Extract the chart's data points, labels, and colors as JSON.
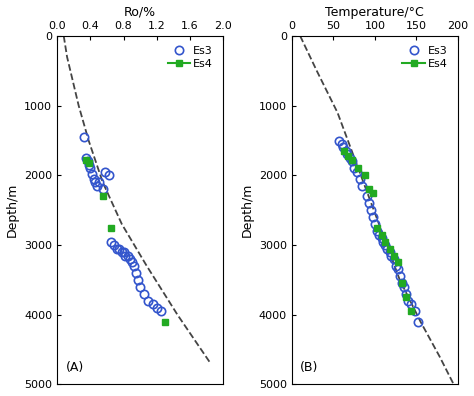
{
  "panel_A": {
    "title": "Ro/%",
    "xlim": [
      0,
      2.0
    ],
    "ylim": [
      5000,
      0
    ],
    "xticks": [
      0,
      0.4,
      0.8,
      1.2,
      1.6,
      2.0
    ],
    "yticks": [
      0,
      1000,
      2000,
      3000,
      4000,
      5000
    ],
    "label": "(A)",
    "Es3_x": [
      0.32,
      0.35,
      0.37,
      0.38,
      0.4,
      0.42,
      0.44,
      0.46,
      0.48,
      0.5,
      0.55,
      0.58,
      0.62,
      0.65,
      0.68,
      0.72,
      0.75,
      0.78,
      0.8,
      0.82,
      0.85,
      0.88,
      0.9,
      0.93,
      0.95,
      0.98,
      1.0,
      1.05,
      1.1,
      1.15,
      1.2,
      1.25
    ],
    "Es3_y": [
      1450,
      1750,
      1800,
      1850,
      1900,
      1980,
      2050,
      2100,
      2150,
      2100,
      2200,
      1950,
      2000,
      2950,
      3000,
      3050,
      3050,
      3100,
      3100,
      3150,
      3150,
      3200,
      3250,
      3300,
      3400,
      3500,
      3600,
      3700,
      3800,
      3850,
      3900,
      3950
    ],
    "Es4_x": [
      0.35,
      0.38,
      0.55,
      0.65,
      1.3
    ],
    "Es4_y": [
      1780,
      1820,
      2300,
      2750,
      4100
    ],
    "dashed_x": [
      0.08,
      0.12,
      0.18,
      0.26,
      0.38,
      0.55,
      0.78,
      1.08,
      1.45,
      1.85
    ],
    "dashed_y": [
      0,
      300,
      600,
      1000,
      1500,
      2100,
      2700,
      3300,
      4000,
      4700
    ]
  },
  "panel_B": {
    "title": "Temperature/°C",
    "xlim": [
      0,
      200
    ],
    "ylim": [
      5000,
      0
    ],
    "xticks": [
      0,
      50,
      100,
      150,
      200
    ],
    "yticks": [
      0,
      1000,
      2000,
      3000,
      4000,
      5000
    ],
    "label": "(B)",
    "Es3_x": [
      57,
      60,
      62,
      65,
      67,
      70,
      72,
      75,
      78,
      82,
      85,
      90,
      93,
      95,
      98,
      100,
      103,
      105,
      108,
      110,
      112,
      115,
      118,
      120,
      123,
      125,
      128,
      130,
      133,
      135,
      138,
      140,
      143,
      148,
      152
    ],
    "Es3_y": [
      1500,
      1550,
      1600,
      1650,
      1700,
      1750,
      1800,
      1900,
      1950,
      2050,
      2150,
      2300,
      2400,
      2500,
      2600,
      2700,
      2800,
      2850,
      2900,
      2950,
      3000,
      3050,
      3100,
      3150,
      3200,
      3300,
      3350,
      3450,
      3550,
      3600,
      3700,
      3800,
      3850,
      3950,
      4100
    ],
    "Es4_x": [
      63,
      68,
      73,
      80,
      88,
      93,
      98,
      103,
      108,
      112,
      118,
      123,
      128,
      133,
      138,
      143
    ],
    "Es4_y": [
      1650,
      1720,
      1780,
      1900,
      2000,
      2200,
      2250,
      2750,
      2850,
      2950,
      3050,
      3150,
      3250,
      3550,
      3750,
      3950
    ],
    "dashed_x": [
      10,
      30,
      55,
      80,
      105,
      130,
      155,
      178,
      195
    ],
    "dashed_y": [
      0,
      500,
      1100,
      1900,
      2700,
      3500,
      4100,
      4600,
      5000
    ]
  },
  "es3_color": "#3355cc",
  "es4_color": "#22aa22",
  "dashed_color": "#444444",
  "bg_color": "#ffffff",
  "marker_size": 6,
  "font_size": 9
}
